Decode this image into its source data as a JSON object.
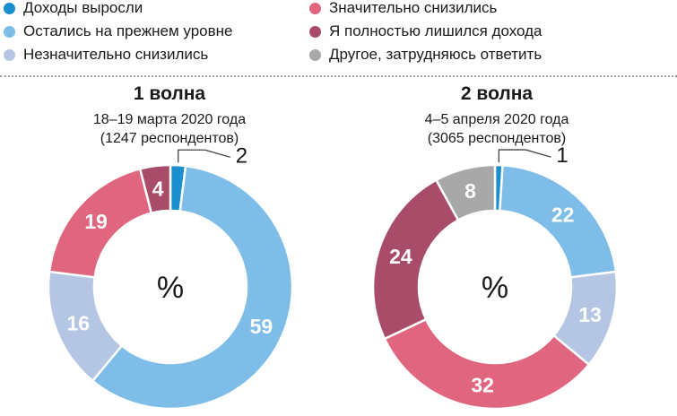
{
  "legend": [
    {
      "label": "Доходы выросли",
      "color": "#1a8fd0"
    },
    {
      "label": "Остались на прежнем уровне",
      "color": "#7dbde8"
    },
    {
      "label": "Незначительно снизились",
      "color": "#b4c6e3"
    },
    {
      "label": "Значительно снизились",
      "color": "#e0657f"
    },
    {
      "label": "Я полностью лишился дохода",
      "color": "#a84c69"
    },
    {
      "label": "Другое, затрудняюсь ответить",
      "color": "#a8a8a8"
    }
  ],
  "chart_data": [
    {
      "type": "pie",
      "title": "1 волна",
      "subtitle_lines": [
        "18–19 марта 2020 года",
        "(1247 респондентов)"
      ],
      "center_label": "%",
      "unit": "%",
      "categories": [
        "Доходы выросли",
        "Остались на прежнем уровне",
        "Незначительно снизились",
        "Значительно снизились",
        "Я полностью лишился дохода"
      ],
      "values": [
        2,
        59,
        16,
        19,
        4
      ],
      "value_labels": [
        "2",
        "59",
        "16",
        "19",
        "4"
      ],
      "colors": [
        "#1a8fd0",
        "#7dbde8",
        "#b4c6e3",
        "#e0657f",
        "#a84c69"
      ]
    },
    {
      "type": "pie",
      "title": "2 волна",
      "subtitle_lines": [
        "4–5 апреля 2020 года",
        "(3065 респондентов)"
      ],
      "center_label": "%",
      "unit": "%",
      "categories": [
        "Доходы выросли",
        "Остались на прежнем уровне",
        "Незначительно снизились",
        "Значительно снизились",
        "Я полностью лишился дохода",
        "Другое, затрудняюсь ответить"
      ],
      "values": [
        1,
        22,
        13,
        32,
        24,
        8
      ],
      "value_labels": [
        "1",
        "22",
        "13",
        "32",
        "24",
        "8"
      ],
      "colors": [
        "#1a8fd0",
        "#7dbde8",
        "#b4c6e3",
        "#e0657f",
        "#a84c69",
        "#a8a8a8"
      ]
    }
  ]
}
